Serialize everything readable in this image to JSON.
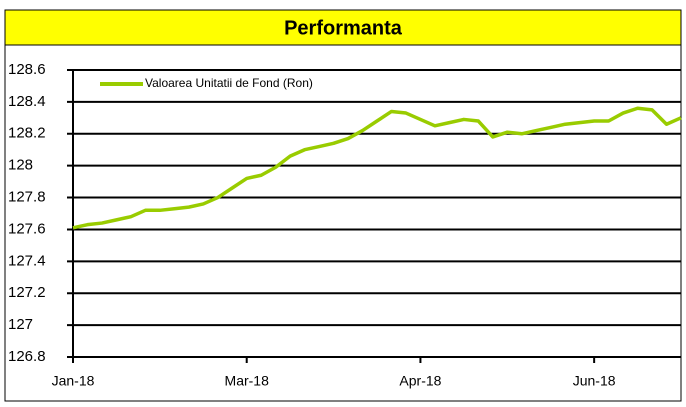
{
  "chart_data": {
    "type": "line",
    "title": "Performanta",
    "categories": [
      "Jan-18",
      null,
      null,
      null,
      null,
      null,
      null,
      null,
      null,
      null,
      null,
      null,
      "Mar-18",
      null,
      null,
      null,
      null,
      null,
      null,
      null,
      null,
      null,
      null,
      null,
      "Apr-18",
      null,
      null,
      null,
      null,
      null,
      null,
      null,
      null,
      null,
      null,
      null,
      "Jun-18",
      null,
      null,
      null,
      null,
      null,
      null
    ],
    "series": [
      {
        "name": "Valoarea Unitatii de Fond (Ron)",
        "color": "#99cc00",
        "values": [
          127.61,
          127.63,
          127.64,
          127.66,
          127.68,
          127.72,
          127.72,
          127.73,
          127.74,
          127.76,
          127.8,
          127.86,
          127.92,
          127.94,
          127.99,
          128.06,
          128.1,
          128.12,
          128.14,
          128.17,
          128.22,
          128.28,
          128.34,
          128.33,
          128.29,
          128.25,
          128.27,
          128.29,
          128.28,
          128.18,
          128.21,
          128.2,
          128.22,
          128.24,
          128.26,
          128.27,
          128.28,
          128.28,
          128.33,
          128.36,
          128.35,
          128.26,
          128.3
        ]
      }
    ],
    "ylim": [
      126.8,
      128.6
    ],
    "yticks": [
      126.8,
      127,
      127.2,
      127.4,
      127.6,
      127.8,
      128,
      128.2,
      128.4,
      128.6
    ],
    "grid": true,
    "legend": "top-left"
  }
}
